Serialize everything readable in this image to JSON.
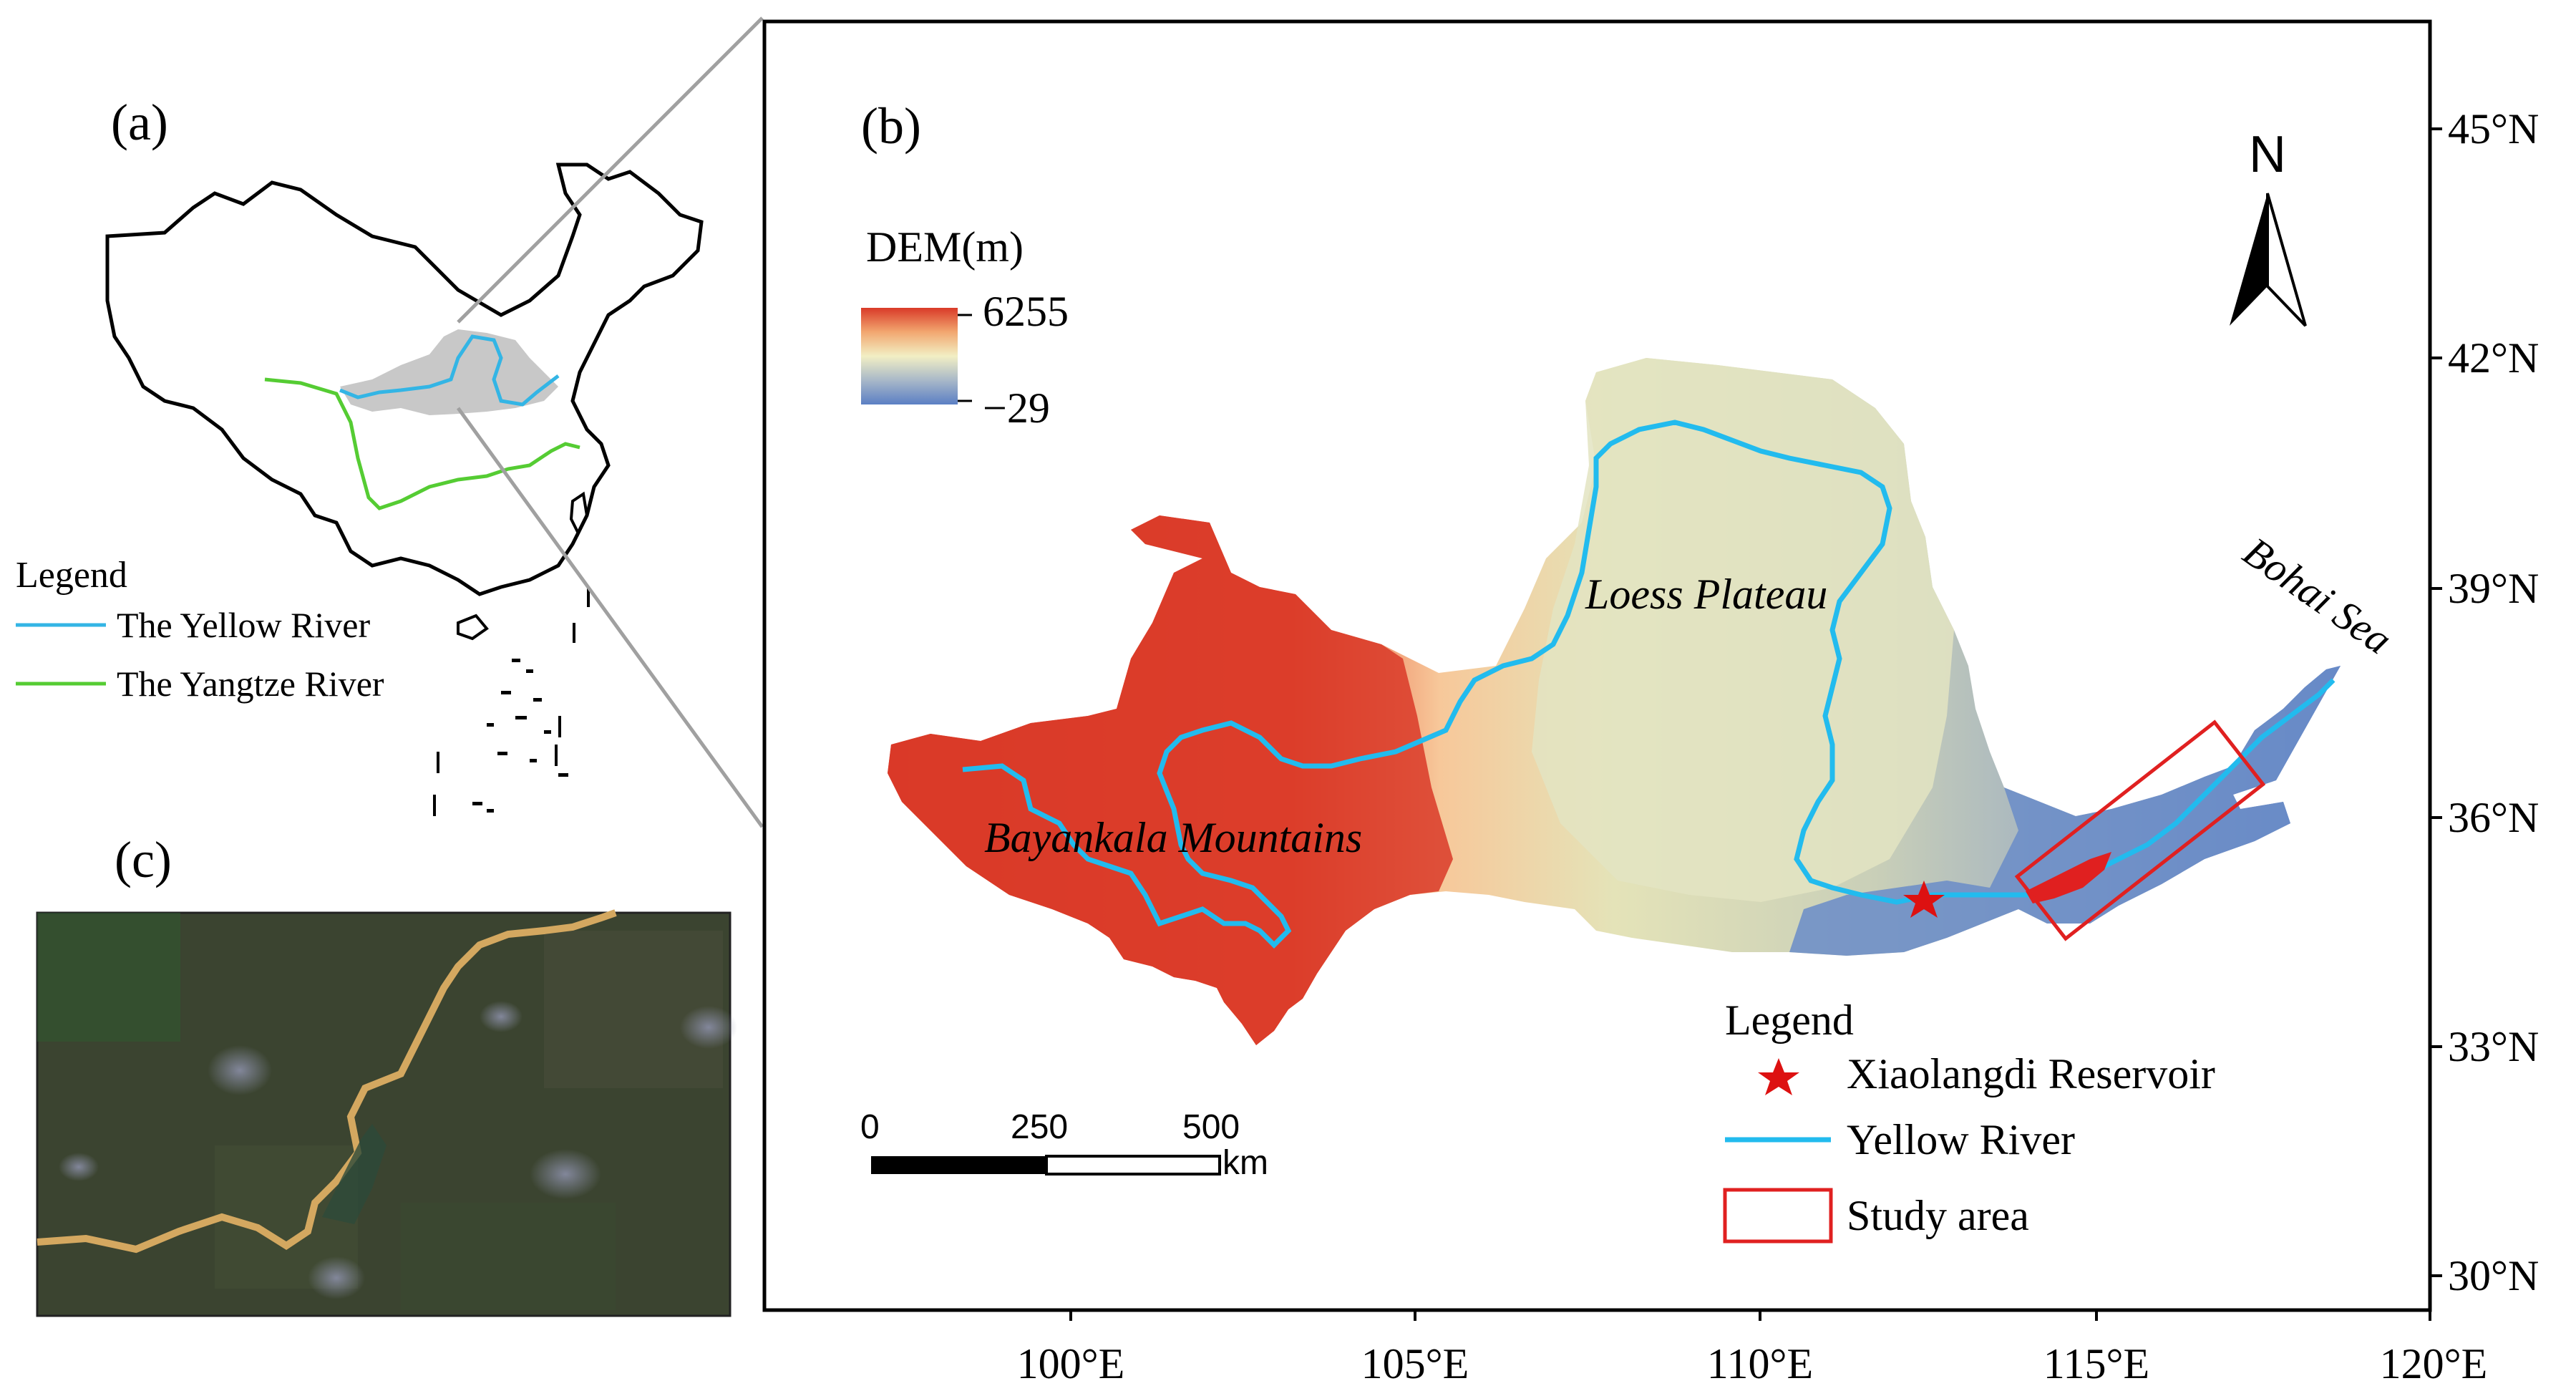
{
  "panel_a": {
    "label": "(a)",
    "legend_title": "Legend",
    "legend_items": [
      "The Yellow River",
      "The Yangtze River"
    ],
    "colors": {
      "yellow_river": "#33b5e5",
      "yangtze_river": "#55cc33",
      "basin": "#c8c8c8",
      "border": "#000000"
    }
  },
  "panel_b": {
    "label": "(b)",
    "dem_title": "DEM(m)",
    "dem_max": "6255",
    "dem_min": "−29",
    "north": "N",
    "labels": {
      "loess": "Loess Plateau",
      "bayankala": "Bayankala Mountains",
      "bohai": "Bohai Sea"
    },
    "scale": {
      "ticks": [
        "0",
        "250",
        "500"
      ],
      "unit": "km"
    },
    "legend_title": "Legend",
    "legend_items": [
      "Xiaolangdi Reservoir",
      "Yellow River",
      "Study area"
    ],
    "lon_ticks": [
      "100°E",
      "105°E",
      "110°E",
      "115°E",
      "120°E"
    ],
    "lat_ticks": [
      "45°N",
      "42°N",
      "39°N",
      "36°N",
      "33°N",
      "30°N"
    ],
    "colors": {
      "river": "#22bbee",
      "reservoir_star": "#dd1111",
      "study_box": "#e02020",
      "dem_high": "#d93a28",
      "dem_mid": "#f2efc4",
      "dem_low": "#5b7fc4"
    }
  },
  "panel_c": {
    "label": "(c)",
    "colors": {
      "ground": "#3b4430",
      "river": "#d4a860"
    }
  }
}
